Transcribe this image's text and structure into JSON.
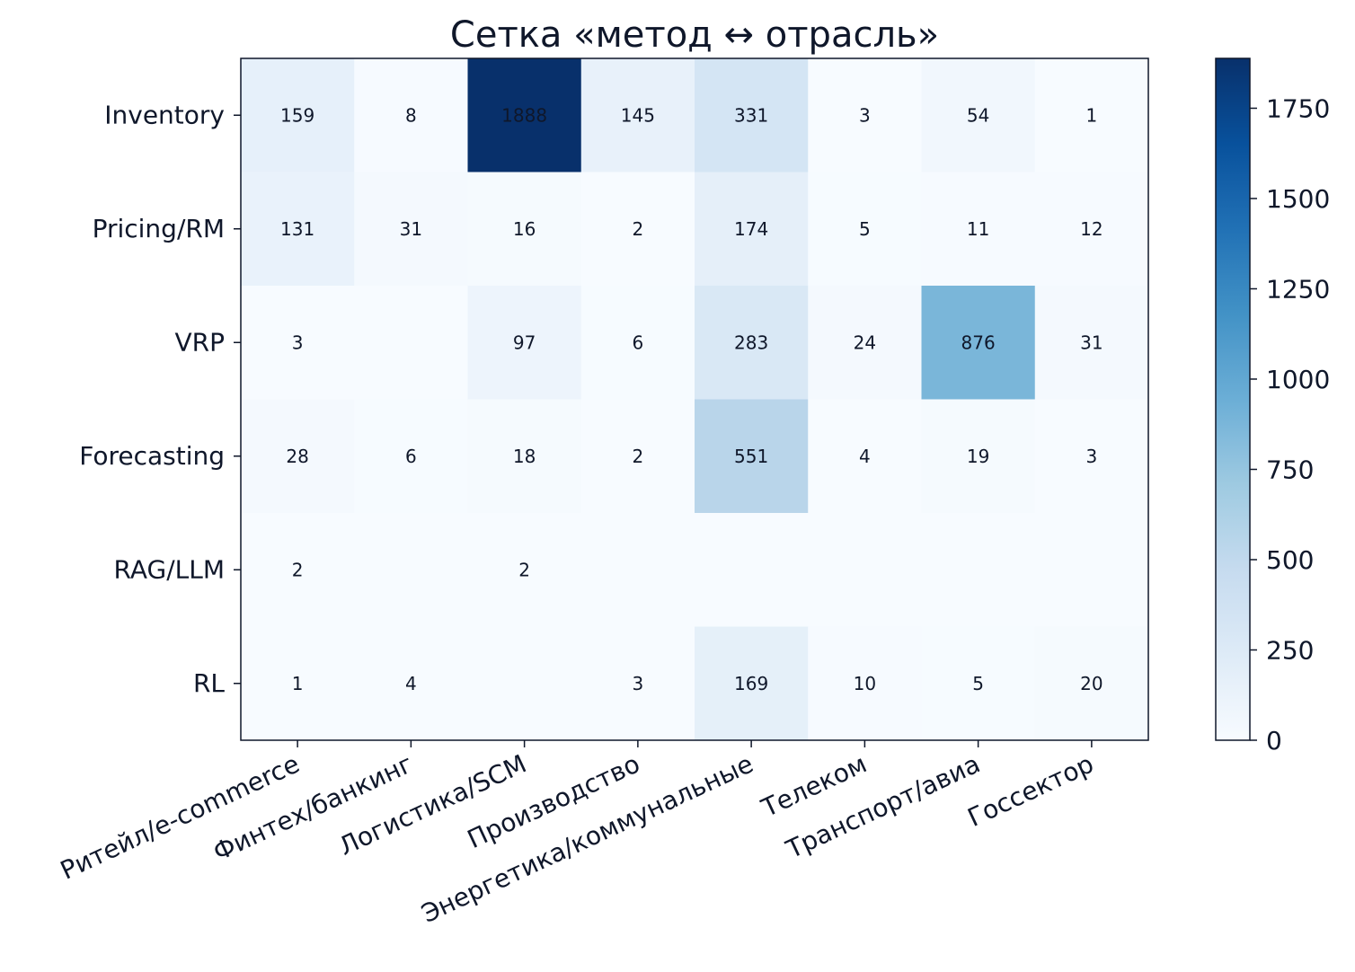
{
  "chart_data": {
    "type": "heatmap",
    "title": "Сетка «метод ↔ отрасль»",
    "xlabel": "",
    "ylabel": "",
    "rows": [
      "Inventory",
      "Pricing/RM",
      "VRP",
      "Forecasting",
      "RAG/LLM",
      "RL"
    ],
    "columns": [
      "Ритейл/e-commerce",
      "Финтех/банкинг",
      "Логистика/SCM",
      "Производство",
      "Энергетика/коммунальные",
      "Телеком",
      "Транспорт/авиа",
      "Госсектор"
    ],
    "values": [
      [
        159,
        8,
        1888,
        145,
        331,
        3,
        54,
        1
      ],
      [
        131,
        31,
        16,
        2,
        174,
        5,
        11,
        12
      ],
      [
        3,
        0,
        97,
        6,
        283,
        24,
        876,
        31
      ],
      [
        28,
        6,
        18,
        2,
        551,
        4,
        19,
        3
      ],
      [
        2,
        0,
        2,
        0,
        0,
        0,
        0,
        0
      ],
      [
        1,
        4,
        0,
        3,
        169,
        10,
        5,
        20
      ]
    ],
    "zero_cells_labeled": false,
    "colormap": "Blues",
    "color_range": [
      0,
      1888
    ],
    "colorbar_ticks": [
      0,
      250,
      500,
      750,
      1000,
      1250,
      1500,
      1750
    ],
    "colorbar_position": "right",
    "x_tick_rotation_deg": 25,
    "grid": false,
    "text_color": "#0f172a"
  }
}
